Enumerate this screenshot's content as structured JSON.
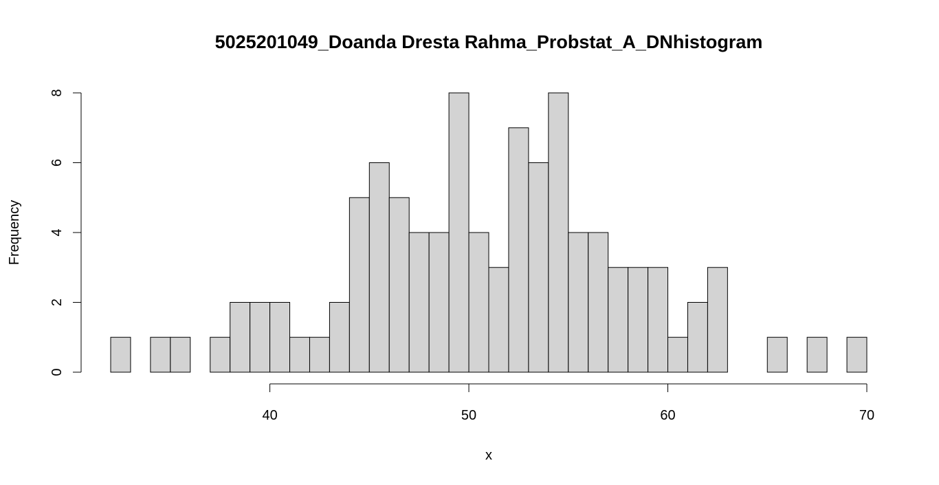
{
  "chart_data": {
    "type": "bar",
    "title": "5025201049_Doanda Dresta Rahma_Probstat_A_DNhistogram",
    "xlabel": "x",
    "ylabel": "Frequency",
    "bar_color": "#d3d3d3",
    "edge_color": "#000000",
    "bin_width": 1,
    "bin_starts": [
      32,
      33,
      34,
      35,
      36,
      37,
      38,
      39,
      40,
      41,
      42,
      43,
      44,
      45,
      46,
      47,
      48,
      49,
      50,
      51,
      52,
      53,
      54,
      55,
      56,
      57,
      58,
      59,
      60,
      61,
      62,
      63,
      64,
      65,
      66,
      67,
      68,
      69
    ],
    "values": [
      1,
      0,
      1,
      1,
      0,
      1,
      2,
      2,
      2,
      1,
      1,
      2,
      5,
      6,
      5,
      4,
      4,
      8,
      4,
      3,
      7,
      6,
      8,
      4,
      4,
      3,
      3,
      3,
      1,
      2,
      3,
      0,
      0,
      1,
      0,
      1,
      0,
      1
    ],
    "xlim": [
      32,
      70
    ],
    "ylim": [
      0,
      8
    ],
    "x_ticks": [
      40,
      50,
      60,
      70
    ],
    "x_tick_labels": [
      "40",
      "50",
      "60",
      "70"
    ],
    "y_ticks": [
      0,
      2,
      4,
      6,
      8
    ],
    "y_tick_labels": [
      "0",
      "2",
      "4",
      "6",
      "8"
    ],
    "grid": false,
    "legend": "none"
  }
}
